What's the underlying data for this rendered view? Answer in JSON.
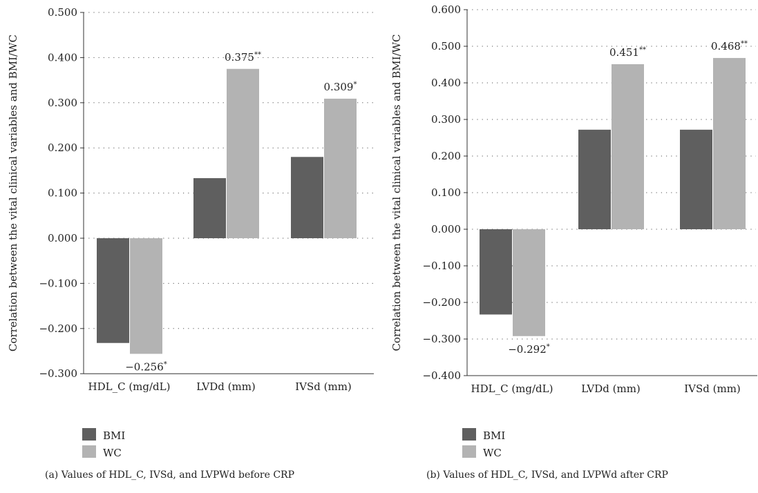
{
  "chart_data": [
    {
      "type": "bar",
      "caption": "(a)  Values of HDL_C, IVSd, and LVPWd before CRP",
      "ylabel": "Correlation between the vital clinical variables and BMI/WC",
      "ylim": [
        -0.3,
        0.5
      ],
      "yticks": [
        "0.500",
        "0.400",
        "0.300",
        "0.200",
        "0.100",
        "0.000",
        "−0.100",
        "−0.200",
        "−0.300"
      ],
      "ytick_values": [
        0.5,
        0.4,
        0.3,
        0.2,
        0.1,
        0.0,
        -0.1,
        -0.2,
        -0.3
      ],
      "grid": "dotted horizontal",
      "legend_position": "bottom-left",
      "categories": [
        "HDL_C (mg/dL)",
        "LVDd (mm)",
        "IVSd (mm)"
      ],
      "series": [
        {
          "name": "BMI",
          "color": "#5f5f5f",
          "values": [
            -0.232,
            0.133,
            0.18
          ]
        },
        {
          "name": "WC",
          "color": "#b3b3b3",
          "values": [
            -0.256,
            0.375,
            0.309
          ]
        }
      ],
      "annotations": [
        {
          "series": "WC",
          "category": "HDL_C (mg/dL)",
          "text": "−0.256",
          "sup": "*"
        },
        {
          "series": "WC",
          "category": "LVDd (mm)",
          "text": "0.375",
          "sup": "**"
        },
        {
          "series": "WC",
          "category": "IVSd (mm)",
          "text": "0.309",
          "sup": "*"
        }
      ]
    },
    {
      "type": "bar",
      "caption": "(b)  Values of HDL_C, IVSd, and LVPWd after CRP",
      "ylabel": "Correlation between the vital clinical variables and BMI/WC",
      "ylim": [
        -0.4,
        0.6
      ],
      "yticks": [
        "0.600",
        "0.500",
        "0.400",
        "0.300",
        "0.200",
        "0.100",
        "0.000",
        "−0.100",
        "−0.200",
        "−0.300",
        "−0.400"
      ],
      "ytick_values": [
        0.6,
        0.5,
        0.4,
        0.3,
        0.2,
        0.1,
        0.0,
        -0.1,
        -0.2,
        -0.3,
        -0.4
      ],
      "grid": "dotted horizontal",
      "legend_position": "bottom-left",
      "categories": [
        "HDL_C (mg/dL)",
        "LVDd (mm)",
        "IVSd (mm)"
      ],
      "series": [
        {
          "name": "BMI",
          "color": "#5f5f5f",
          "values": [
            -0.233,
            0.272,
            0.272
          ]
        },
        {
          "name": "WC",
          "color": "#b3b3b3",
          "values": [
            -0.292,
            0.451,
            0.468
          ]
        }
      ],
      "annotations": [
        {
          "series": "WC",
          "category": "HDL_C (mg/dL)",
          "text": "−0.292",
          "sup": "*"
        },
        {
          "series": "WC",
          "category": "LVDd (mm)",
          "text": "0.451",
          "sup": "**"
        },
        {
          "series": "WC",
          "category": "IVSd (mm)",
          "text": "0.468",
          "sup": "**"
        }
      ]
    }
  ]
}
